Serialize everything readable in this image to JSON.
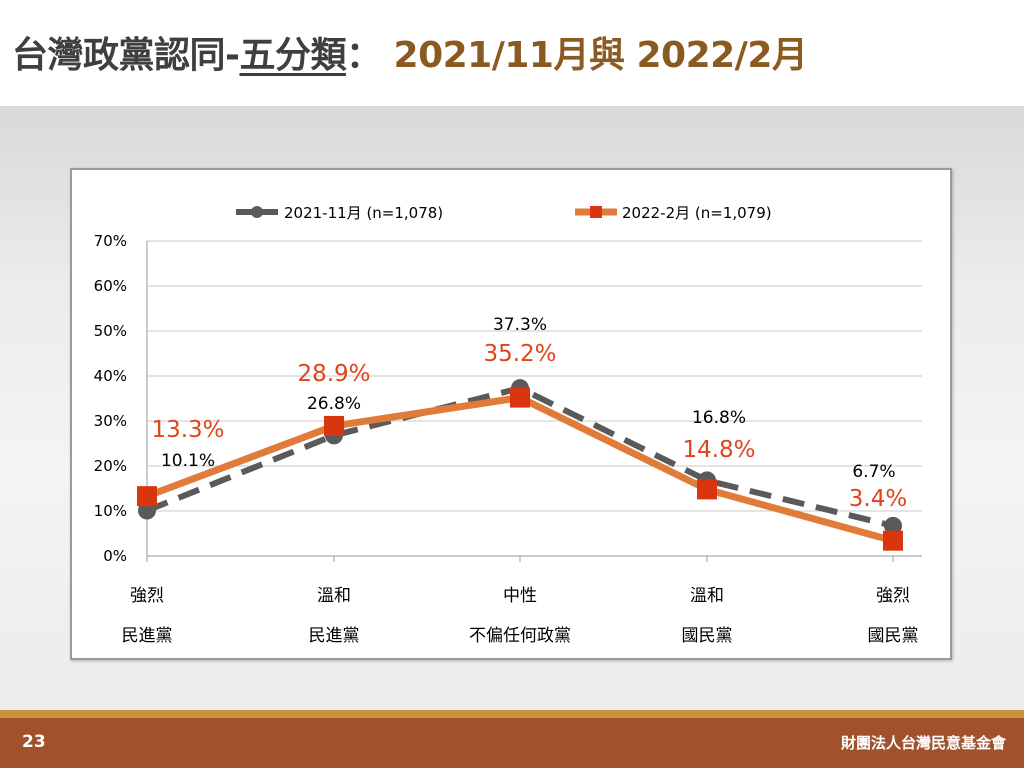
{
  "header": {
    "title_part1": "台灣政黨認同-",
    "title_part2": "五分類",
    "title_part3": "： ",
    "title_part4": "2021/11月與 2022/2月"
  },
  "footer": {
    "page_number": "23",
    "organization": "財團法人台灣民意基金會"
  },
  "colors": {
    "series1": "#5a5a5a",
    "series2": "#e07b39",
    "series2_marker": "#d9360f",
    "label2": "#e0441a",
    "title_accent": "#8a5a20",
    "footer": "#a0522d",
    "footer_stripe": "#c8923a"
  },
  "chart_data": {
    "type": "line",
    "categories": [
      [
        "強烈",
        "民進黨"
      ],
      [
        "溫和",
        "民進黨"
      ],
      [
        "中性",
        "不偏任何政黨"
      ],
      [
        "溫和",
        "國民黨"
      ],
      [
        "強烈",
        "國民黨"
      ]
    ],
    "series": [
      {
        "name": "2021-11月 (n=1,078)",
        "values": [
          10.1,
          26.8,
          37.3,
          16.8,
          6.7
        ],
        "labels": [
          "10.1%",
          "26.8%",
          "37.3%",
          "16.8%",
          "6.7%"
        ],
        "style": "dashed",
        "marker": "circle"
      },
      {
        "name": "2022-2月 (n=1,079)",
        "values": [
          13.3,
          28.9,
          35.2,
          14.8,
          3.4
        ],
        "labels": [
          "13.3%",
          "28.9%",
          "35.2%",
          "14.8%",
          "3.4%"
        ],
        "style": "solid",
        "marker": "square"
      }
    ],
    "ylim": [
      0,
      70
    ],
    "yticks": [
      0,
      10,
      20,
      30,
      40,
      50,
      60,
      70
    ],
    "ytick_labels": [
      "0%",
      "10%",
      "20%",
      "30%",
      "40%",
      "50%",
      "60%",
      "70%"
    ],
    "grid": true,
    "legend": "top"
  }
}
